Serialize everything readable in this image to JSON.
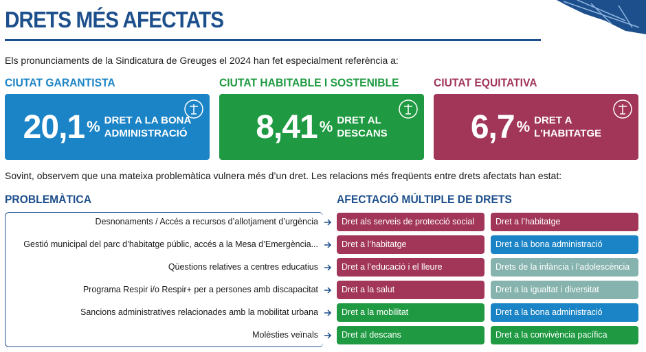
{
  "header": {
    "title": "DRETS MÉS AFECTATS",
    "intro": "Els pronunciaments de la Sindicatura de Greuges el 2024 han fet especialment referència a:"
  },
  "highlights": [
    {
      "heading": "CIUTAT GARANTISTA",
      "value": "20,1",
      "unit": "%",
      "label_lines": [
        "DRET A LA BONA",
        "ADMINISTRACIÓ"
      ],
      "color": "#1b84c6"
    },
    {
      "heading": "CIUTAT HABITABLE I SOSTENIBLE",
      "value": "8,41",
      "unit": "%",
      "label_lines": [
        "DRET AL",
        "DESCANS"
      ],
      "color": "#1f9a42"
    },
    {
      "heading": "CIUTAT EQUITATIVA",
      "value": "6,7",
      "unit": "%",
      "label_lines": [
        "DRET A",
        "L'HABITATGE"
      ],
      "color": "#a13659"
    }
  ],
  "note": "Sovint, observem que una mateixa problemàtica vulnera més d’un dret. Les relacions més freqüents entre drets afectats han estat:",
  "table": {
    "left_heading": "PROBLEMÀTICA",
    "right_heading": "AFECTACIÓ MÚLTIPLE DE DRETS",
    "rows": [
      {
        "problem": "Desnonaments / Accés a recursos d’allotjament d’urgència",
        "rights": [
          {
            "text": "Dret als serveis de protecció social",
            "color": "#a13659"
          },
          {
            "text": "Dret a l’habitatge",
            "color": "#a13659"
          }
        ]
      },
      {
        "problem": "Gestió municipal del parc d’habitatge públic, accés a la Mesa d’Emergència...",
        "rights": [
          {
            "text": "Dret a l’habitatge",
            "color": "#a13659"
          },
          {
            "text": "Dret a la bona administració",
            "color": "#1b84c6"
          }
        ]
      },
      {
        "problem": "Qüestions relatives a centres educatius",
        "rights": [
          {
            "text": "Dret a l’educació i el lleure",
            "color": "#a13659"
          },
          {
            "text": "Drets de la infància i l’adolescència",
            "color": "#86b3ad"
          }
        ]
      },
      {
        "problem": "Programa Respir i/o Respir+ per a persones amb discapacitat",
        "rights": [
          {
            "text": "Dret a la salut",
            "color": "#a13659"
          },
          {
            "text": "Dret a la igualtat i diversitat",
            "color": "#86b3ad"
          }
        ]
      },
      {
        "problem": "Sancions administratives relacionades amb la mobilitat urbana",
        "rights": [
          {
            "text": "Dret a la mobilitat",
            "color": "#1f9a42"
          },
          {
            "text": "Dret a la bona administració",
            "color": "#1b84c6"
          }
        ]
      },
      {
        "problem": "Molèsties veïnals",
        "rights": [
          {
            "text": "Dret al descans",
            "color": "#1f9a42"
          },
          {
            "text": "Dret a la convivència pacífica",
            "color": "#1f9a42"
          }
        ]
      }
    ]
  }
}
